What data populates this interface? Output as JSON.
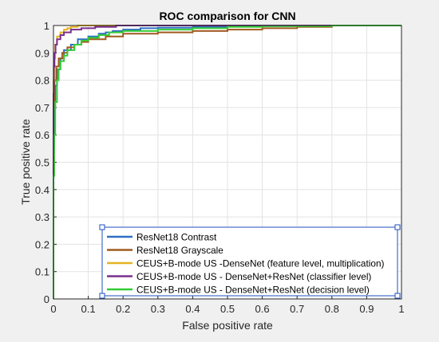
{
  "chart_data": {
    "type": "line",
    "title": "ROC comparison for CNN",
    "xlabel": "False positive rate",
    "ylabel": "True positive rate",
    "xlim": [
      0,
      1
    ],
    "ylim": [
      0,
      1
    ],
    "grid": true,
    "legend_position": "bottom-right",
    "xticks": [
      0,
      0.1,
      0.2,
      0.3,
      0.4,
      0.5,
      0.6,
      0.7,
      0.8,
      0.9,
      1
    ],
    "yticks": [
      0,
      0.1,
      0.2,
      0.3,
      0.4,
      0.5,
      0.6,
      0.7,
      0.8,
      0.9,
      1
    ],
    "series": [
      {
        "name": "ResNet18 Contrast",
        "color": "#2e6fc4",
        "points": [
          [
            0,
            0
          ],
          [
            0,
            0.3
          ],
          [
            0.002,
            0.55
          ],
          [
            0.005,
            0.7
          ],
          [
            0.01,
            0.78
          ],
          [
            0.02,
            0.84
          ],
          [
            0.03,
            0.88
          ],
          [
            0.05,
            0.91
          ],
          [
            0.07,
            0.93
          ],
          [
            0.1,
            0.95
          ],
          [
            0.13,
            0.96
          ],
          [
            0.15,
            0.97
          ],
          [
            0.17,
            0.975
          ],
          [
            0.2,
            0.98
          ],
          [
            0.25,
            0.985
          ],
          [
            0.3,
            0.99
          ],
          [
            0.4,
            0.992
          ],
          [
            0.5,
            0.995
          ],
          [
            0.6,
            0.997
          ],
          [
            0.7,
            0.998
          ],
          [
            1,
            1
          ]
        ]
      },
      {
        "name": "ResNet18 Grayscale",
        "color": "#a05a1e",
        "points": [
          [
            0,
            0
          ],
          [
            0,
            0.45
          ],
          [
            0.003,
            0.7
          ],
          [
            0.008,
            0.8
          ],
          [
            0.015,
            0.85
          ],
          [
            0.025,
            0.88
          ],
          [
            0.04,
            0.9
          ],
          [
            0.06,
            0.92
          ],
          [
            0.08,
            0.93
          ],
          [
            0.1,
            0.94
          ],
          [
            0.15,
            0.95
          ],
          [
            0.2,
            0.96
          ],
          [
            0.3,
            0.97
          ],
          [
            0.4,
            0.975
          ],
          [
            0.5,
            0.98
          ],
          [
            0.6,
            0.985
          ],
          [
            0.7,
            0.99
          ],
          [
            0.8,
            0.995
          ],
          [
            0.85,
            1
          ],
          [
            1,
            1
          ]
        ]
      },
      {
        "name": "CEUS+B-mode US -DenseNet (feature level, multiplication)",
        "color": "#e6b422",
        "points": [
          [
            0,
            0
          ],
          [
            0,
            0.6
          ],
          [
            0.002,
            0.8
          ],
          [
            0.005,
            0.88
          ],
          [
            0.01,
            0.93
          ],
          [
            0.02,
            0.96
          ],
          [
            0.03,
            0.975
          ],
          [
            0.04,
            0.985
          ],
          [
            0.05,
            0.99
          ],
          [
            0.07,
            0.995
          ],
          [
            0.1,
            1
          ],
          [
            1,
            1
          ]
        ]
      },
      {
        "name": "CEUS+B-mode US - DenseNet+ResNet (classifier level)",
        "color": "#7b2f8e",
        "points": [
          [
            0,
            0
          ],
          [
            0,
            0.5
          ],
          [
            0.001,
            0.75
          ],
          [
            0.003,
            0.85
          ],
          [
            0.006,
            0.9
          ],
          [
            0.01,
            0.93
          ],
          [
            0.02,
            0.95
          ],
          [
            0.03,
            0.965
          ],
          [
            0.05,
            0.975
          ],
          [
            0.08,
            0.985
          ],
          [
            0.12,
            0.99
          ],
          [
            0.18,
            0.995
          ],
          [
            0.25,
            1
          ],
          [
            1,
            1
          ]
        ]
      },
      {
        "name": "CEUS+B-mode US - DenseNet+ResNet (decision level)",
        "color": "#33cc33",
        "points": [
          [
            0,
            0
          ],
          [
            0,
            0.2
          ],
          [
            0.002,
            0.45
          ],
          [
            0.005,
            0.6
          ],
          [
            0.01,
            0.72
          ],
          [
            0.015,
            0.8
          ],
          [
            0.02,
            0.84
          ],
          [
            0.03,
            0.87
          ],
          [
            0.04,
            0.89
          ],
          [
            0.06,
            0.91
          ],
          [
            0.08,
            0.93
          ],
          [
            0.1,
            0.945
          ],
          [
            0.13,
            0.955
          ],
          [
            0.16,
            0.965
          ],
          [
            0.2,
            0.975
          ],
          [
            0.3,
            0.98
          ],
          [
            0.4,
            0.985
          ],
          [
            0.5,
            0.99
          ],
          [
            0.6,
            0.995
          ],
          [
            0.8,
            0.998
          ],
          [
            1,
            1
          ]
        ]
      }
    ]
  }
}
